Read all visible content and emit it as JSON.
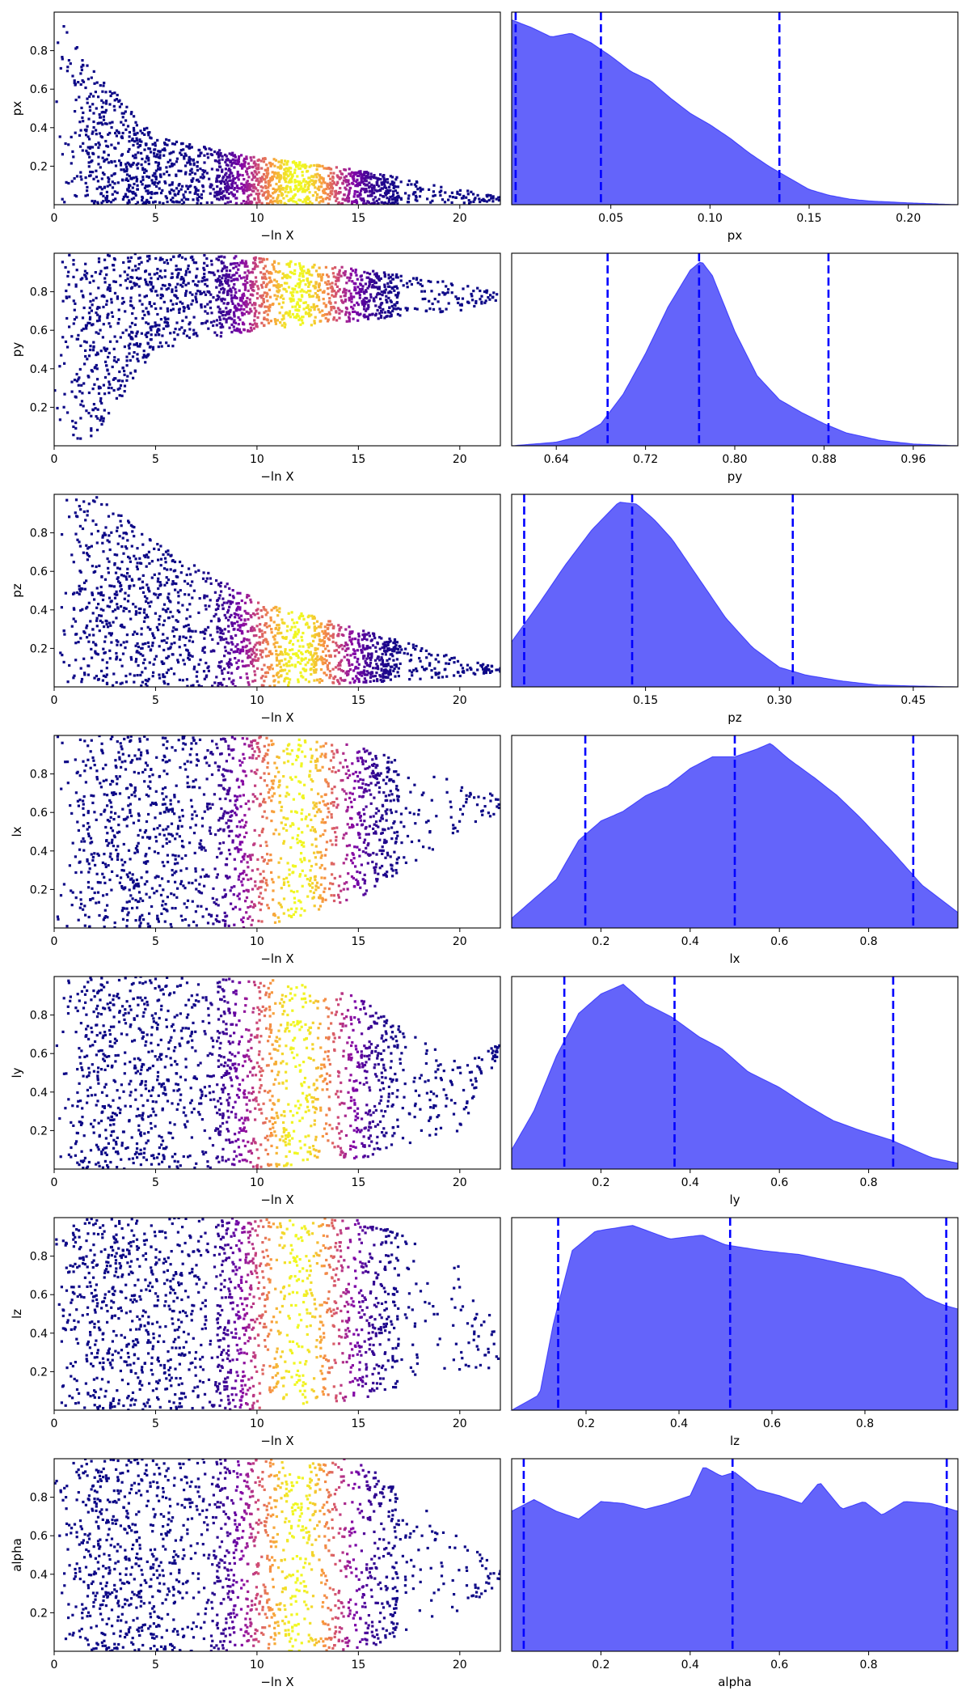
{
  "chart_data": [
    {
      "type": "scatter",
      "xlabel": "−ln X",
      "ylabel": "px",
      "xlim": [
        0,
        22
      ],
      "ylim": [
        0,
        1
      ],
      "xticks": [
        "0",
        "5",
        "10",
        "15",
        "20"
      ],
      "yticks": [
        "0.2",
        "0.4",
        "0.6",
        "0.8"
      ],
      "colormap": "plasma",
      "trend": {
        "x": [
          0,
          2,
          5,
          10,
          15,
          20,
          22
        ],
        "lo": [
          0.0,
          0.0,
          0.0,
          0.0,
          0.0,
          0.0,
          0.02
        ],
        "hi": [
          1.0,
          0.7,
          0.35,
          0.25,
          0.18,
          0.08,
          0.04
        ]
      }
    },
    {
      "type": "area",
      "xlabel": "px",
      "xlim": [
        0.0,
        0.225
      ],
      "xticks": [
        "0.05",
        "0.10",
        "0.15",
        "0.20"
      ],
      "x": [
        0.0,
        0.01,
        0.02,
        0.03,
        0.04,
        0.05,
        0.06,
        0.07,
        0.08,
        0.09,
        0.1,
        0.11,
        0.12,
        0.13,
        0.14,
        0.15,
        0.16,
        0.17,
        0.18,
        0.2,
        0.225
      ],
      "density": [
        0.97,
        0.93,
        0.88,
        0.9,
        0.85,
        0.78,
        0.7,
        0.65,
        0.56,
        0.48,
        0.42,
        0.35,
        0.27,
        0.2,
        0.14,
        0.08,
        0.05,
        0.03,
        0.02,
        0.01,
        0.0
      ],
      "quantiles": [
        0.002,
        0.045,
        0.135
      ],
      "fill_color": "#6464fa",
      "line_color": "#0000ff"
    },
    {
      "type": "scatter",
      "xlabel": "−ln X",
      "ylabel": "py",
      "xlim": [
        0,
        22
      ],
      "ylim": [
        0,
        1
      ],
      "xticks": [
        "0",
        "5",
        "10",
        "15",
        "20"
      ],
      "yticks": [
        "0.2",
        "0.4",
        "0.6",
        "0.8"
      ],
      "colormap": "plasma",
      "trend": {
        "x": [
          0,
          2,
          5,
          10,
          15,
          20,
          22
        ],
        "lo": [
          0.0,
          0.05,
          0.5,
          0.6,
          0.65,
          0.7,
          0.76
        ],
        "hi": [
          1.0,
          1.0,
          1.0,
          0.98,
          0.92,
          0.84,
          0.8
        ]
      }
    },
    {
      "type": "area",
      "xlabel": "py",
      "xlim": [
        0.6,
        1.0
      ],
      "xticks": [
        "0.64",
        "0.72",
        "0.80",
        "0.88",
        "0.96"
      ],
      "x": [
        0.6,
        0.64,
        0.66,
        0.68,
        0.7,
        0.72,
        0.74,
        0.76,
        0.77,
        0.78,
        0.8,
        0.82,
        0.84,
        0.86,
        0.88,
        0.9,
        0.93,
        0.96,
        1.0
      ],
      "density": [
        0.0,
        0.02,
        0.05,
        0.12,
        0.28,
        0.5,
        0.75,
        0.95,
        1.0,
        0.92,
        0.62,
        0.38,
        0.25,
        0.18,
        0.12,
        0.07,
        0.03,
        0.01,
        0.0
      ],
      "quantiles": [
        0.686,
        0.768,
        0.884
      ],
      "fill_color": "#6464fa",
      "line_color": "#0000ff"
    },
    {
      "type": "scatter",
      "xlabel": "−ln X",
      "ylabel": "pz",
      "xlim": [
        0,
        22
      ],
      "ylim": [
        0,
        1
      ],
      "xticks": [
        "0",
        "5",
        "10",
        "15",
        "20"
      ],
      "yticks": [
        "0.2",
        "0.4",
        "0.6",
        "0.8"
      ],
      "colormap": "plasma",
      "trend": {
        "x": [
          0,
          2,
          5,
          10,
          15,
          20,
          22
        ],
        "lo": [
          0.0,
          0.0,
          0.0,
          0.0,
          0.02,
          0.05,
          0.08
        ],
        "hi": [
          1.0,
          1.0,
          0.75,
          0.45,
          0.3,
          0.15,
          0.1
        ]
      }
    },
    {
      "type": "area",
      "xlabel": "pz",
      "xlim": [
        0.0,
        0.5
      ],
      "xticks": [
        "0.15",
        "0.30",
        "0.45"
      ],
      "x": [
        0.0,
        0.03,
        0.06,
        0.09,
        0.12,
        0.14,
        0.16,
        0.18,
        0.21,
        0.24,
        0.27,
        0.3,
        0.33,
        0.37,
        0.41,
        0.45,
        0.5
      ],
      "density": [
        0.23,
        0.42,
        0.62,
        0.8,
        0.94,
        0.93,
        0.85,
        0.75,
        0.55,
        0.35,
        0.2,
        0.1,
        0.06,
        0.03,
        0.01,
        0.005,
        0.0
      ],
      "quantiles": [
        0.014,
        0.135,
        0.315
      ],
      "fill_color": "#6464fa",
      "line_color": "#0000ff"
    },
    {
      "type": "scatter",
      "xlabel": "−ln X",
      "ylabel": "lx",
      "xlim": [
        0,
        22
      ],
      "ylim": [
        0,
        1
      ],
      "xticks": [
        "0",
        "5",
        "10",
        "15",
        "20"
      ],
      "yticks": [
        "0.2",
        "0.4",
        "0.6",
        "0.8"
      ],
      "colormap": "plasma",
      "trend": {
        "x": [
          0,
          2,
          5,
          10,
          15,
          20,
          22
        ],
        "lo": [
          0.0,
          0.0,
          0.0,
          0.0,
          0.15,
          0.5,
          0.6
        ],
        "hi": [
          1.0,
          1.0,
          1.0,
          1.0,
          0.95,
          0.75,
          0.68
        ]
      }
    },
    {
      "type": "area",
      "xlabel": "lx",
      "xlim": [
        0.0,
        1.0
      ],
      "xticks": [
        "0.2",
        "0.4",
        "0.6",
        "0.8"
      ],
      "x": [
        0.0,
        0.1,
        0.15,
        0.2,
        0.25,
        0.3,
        0.35,
        0.4,
        0.45,
        0.5,
        0.55,
        0.58,
        0.62,
        0.68,
        0.73,
        0.78,
        0.85,
        0.92,
        1.0
      ],
      "density": [
        0.05,
        0.25,
        0.45,
        0.55,
        0.6,
        0.68,
        0.73,
        0.82,
        0.88,
        0.88,
        0.92,
        0.95,
        0.87,
        0.77,
        0.68,
        0.57,
        0.4,
        0.22,
        0.08
      ],
      "quantiles": [
        0.165,
        0.5,
        0.9
      ],
      "fill_color": "#6464fa",
      "line_color": "#0000ff"
    },
    {
      "type": "scatter",
      "xlabel": "−ln X",
      "ylabel": "ly",
      "xlim": [
        0,
        22
      ],
      "ylim": [
        0,
        1
      ],
      "xticks": [
        "0",
        "5",
        "10",
        "15",
        "20"
      ],
      "yticks": [
        "0.2",
        "0.4",
        "0.6",
        "0.8"
      ],
      "colormap": "plasma",
      "trend": {
        "x": [
          0,
          2,
          5,
          10,
          15,
          20,
          22
        ],
        "lo": [
          0.0,
          0.0,
          0.0,
          0.0,
          0.05,
          0.2,
          0.6
        ],
        "hi": [
          1.0,
          1.0,
          1.0,
          1.0,
          0.9,
          0.55,
          0.66
        ]
      }
    },
    {
      "type": "area",
      "xlabel": "ly",
      "xlim": [
        0.0,
        1.0
      ],
      "xticks": [
        "0.2",
        "0.4",
        "0.6",
        "0.8"
      ],
      "x": [
        0.0,
        0.05,
        0.1,
        0.15,
        0.2,
        0.25,
        0.3,
        0.36,
        0.42,
        0.47,
        0.53,
        0.6,
        0.66,
        0.72,
        0.78,
        0.85,
        0.9,
        0.94,
        1.0
      ],
      "density": [
        0.1,
        0.3,
        0.58,
        0.8,
        0.9,
        0.95,
        0.85,
        0.78,
        0.68,
        0.62,
        0.5,
        0.42,
        0.33,
        0.25,
        0.2,
        0.15,
        0.1,
        0.06,
        0.03
      ],
      "quantiles": [
        0.118,
        0.365,
        0.855
      ],
      "fill_color": "#6464fa",
      "line_color": "#0000ff"
    },
    {
      "type": "scatter",
      "xlabel": "−ln X",
      "ylabel": "lz",
      "xlim": [
        0,
        22
      ],
      "ylim": [
        0,
        1
      ],
      "xticks": [
        "0",
        "5",
        "10",
        "15",
        "20"
      ],
      "yticks": [
        "0.2",
        "0.4",
        "0.6",
        "0.8"
      ],
      "colormap": "plasma",
      "trend": {
        "x": [
          0,
          2,
          5,
          10,
          15,
          20,
          22
        ],
        "lo": [
          0.0,
          0.0,
          0.0,
          0.0,
          0.05,
          0.2,
          0.18
        ],
        "hi": [
          1.0,
          1.0,
          1.0,
          1.0,
          1.0,
          0.8,
          0.4
        ]
      }
    },
    {
      "type": "area",
      "xlabel": "lz",
      "xlim": [
        0.04,
        1.0
      ],
      "xticks": [
        "0.2",
        "0.4",
        "0.6",
        "0.8"
      ],
      "x": [
        0.04,
        0.1,
        0.13,
        0.17,
        0.22,
        0.3,
        0.38,
        0.45,
        0.5,
        0.58,
        0.66,
        0.74,
        0.82,
        0.88,
        0.93,
        0.97,
        1.0
      ],
      "density": [
        0.0,
        0.08,
        0.45,
        0.82,
        0.92,
        0.95,
        0.88,
        0.9,
        0.85,
        0.82,
        0.8,
        0.76,
        0.72,
        0.68,
        0.58,
        0.54,
        0.52
      ],
      "quantiles": [
        0.14,
        0.51,
        0.975
      ],
      "fill_color": "#6464fa",
      "line_color": "#0000ff"
    },
    {
      "type": "scatter",
      "xlabel": "−ln X",
      "ylabel": "alpha",
      "xlim": [
        0,
        22
      ],
      "ylim": [
        0,
        1
      ],
      "xticks": [
        "0",
        "5",
        "10",
        "15",
        "20"
      ],
      "yticks": [
        "0.2",
        "0.4",
        "0.6",
        "0.8"
      ],
      "colormap": "plasma",
      "trend": {
        "x": [
          0,
          2,
          5,
          10,
          15,
          20,
          22
        ],
        "lo": [
          0.0,
          0.0,
          0.0,
          0.0,
          0.0,
          0.2,
          0.35
        ],
        "hi": [
          1.0,
          1.0,
          1.0,
          1.0,
          1.0,
          0.6,
          0.42
        ]
      }
    },
    {
      "type": "area",
      "xlabel": "alpha",
      "xlim": [
        0.0,
        1.0
      ],
      "xticks": [
        "0.2",
        "0.4",
        "0.6",
        "0.8"
      ],
      "x": [
        0.0,
        0.05,
        0.1,
        0.15,
        0.2,
        0.25,
        0.3,
        0.35,
        0.4,
        0.43,
        0.47,
        0.5,
        0.55,
        0.6,
        0.65,
        0.69,
        0.74,
        0.79,
        0.83,
        0.88,
        0.94,
        1.0
      ],
      "density": [
        0.72,
        0.78,
        0.72,
        0.68,
        0.77,
        0.76,
        0.73,
        0.76,
        0.8,
        0.95,
        0.9,
        0.92,
        0.83,
        0.8,
        0.76,
        0.87,
        0.73,
        0.77,
        0.7,
        0.77,
        0.76,
        0.72
      ],
      "quantiles": [
        0.027,
        0.495,
        0.975
      ],
      "fill_color": "#6464fa",
      "line_color": "#0000ff"
    }
  ]
}
